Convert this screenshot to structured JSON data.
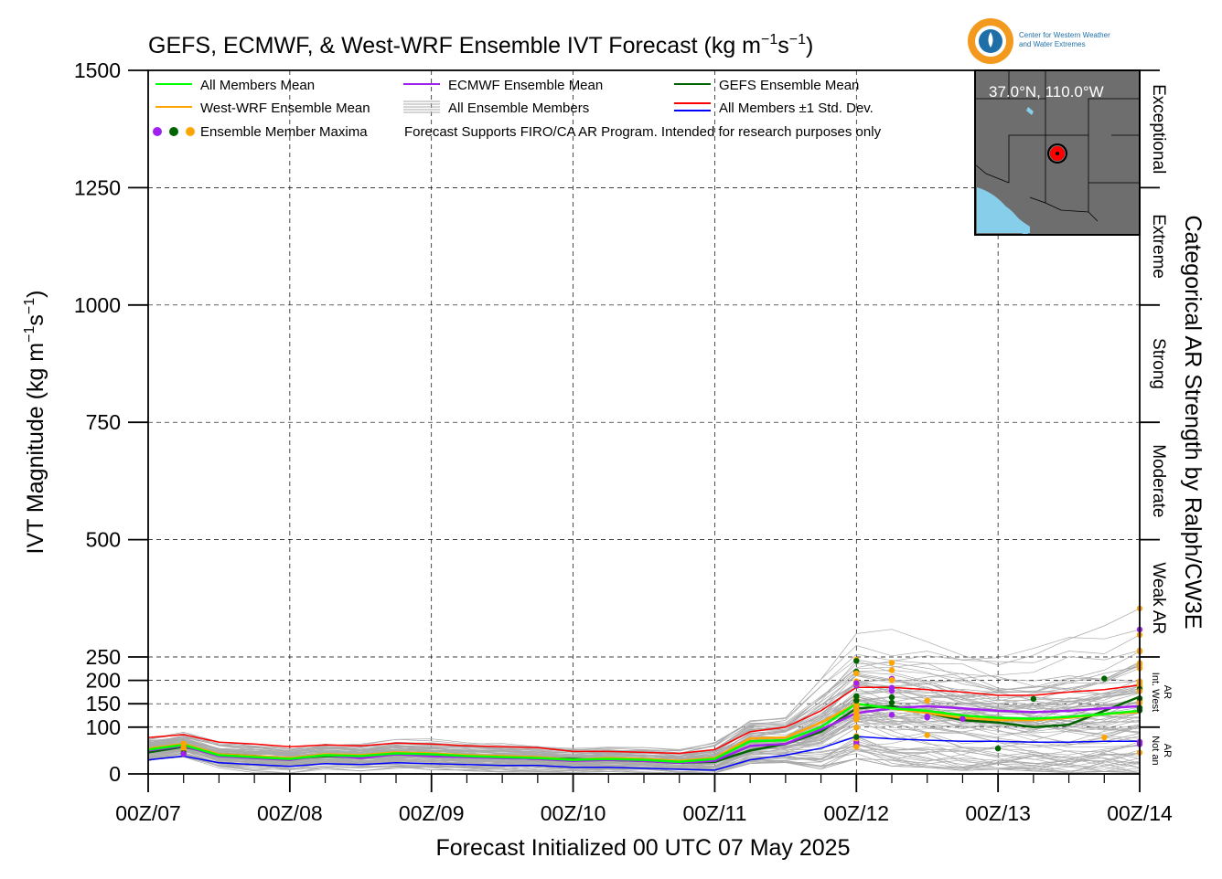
{
  "title": "GEFS, ECMWF, & West-WRF Ensemble IVT Forecast (kg m",
  "title_units_suffix": ")",
  "logo": {
    "line1": "Center for Western Weather",
    "line2": "and Water Extremes"
  },
  "legend": {
    "all_members_mean": "All Members Mean",
    "ecmwf_mean": "ECMWF Ensemble Mean",
    "gefs_mean": "GEFS Ensemble Mean",
    "westwrf_mean": "West-WRF Ensemble Mean",
    "all_members": "All Ensemble Members",
    "std_dev": "All Members ±1 Std. Dev.",
    "maxima": "Ensemble Member Maxima",
    "disclaimer": "Forecast Supports FIRO/CA AR Program. Intended for research purposes only"
  },
  "inset_map": {
    "location_label": "37.0°N, 110.0°W",
    "land_color": "#6e6e6e",
    "water_color": "#87ceeb",
    "marker_color": "#ff0000"
  },
  "colors": {
    "all_members_mean": "#00ff00",
    "ecmwf_mean": "#a020f0",
    "gefs_mean": "#006400",
    "westwrf_mean": "#ffa500",
    "members": "#aaaaaa",
    "std_upper": "#ff0000",
    "std_lower": "#0000ff",
    "grid": "#000000"
  },
  "chart_data": {
    "type": "line",
    "title": "GEFS, ECMWF, & West-WRF Ensemble IVT Forecast (kg m^-1 s^-1)",
    "xlabel": "Forecast Initialized 00 UTC 07 May 2025",
    "ylabel": "IVT Magnitude (kg m^-1 s^-1)",
    "right_label": "Categorical AR Strength by Ralph/CW3E",
    "x_unit": "hours since 00Z/07 May 2025",
    "xlim": [
      0,
      168
    ],
    "x_ticks": [
      0,
      24,
      48,
      72,
      96,
      120,
      144,
      168
    ],
    "x_tick_labels": [
      "00Z/07",
      "00Z/08",
      "00Z/09",
      "00Z/10",
      "00Z/11",
      "00Z/12",
      "00Z/13",
      "00Z/14"
    ],
    "y_ticks": [
      0,
      100,
      150,
      200,
      250,
      500,
      750,
      1000,
      1250,
      1500
    ],
    "y_tick_labels": [
      "0",
      "100",
      "150",
      "200",
      "250",
      "500",
      "750",
      "1000",
      "1250",
      "1500"
    ],
    "ylim": [
      0,
      1500
    ],
    "y_scale_note": "piecewise: 0-250 expanded, 250-1500 linear",
    "grid": true,
    "legend_position": "top-left",
    "categories_right": [
      {
        "label": "Not an AR",
        "from": 0,
        "to": 100
      },
      {
        "label": "Int. West AR",
        "from": 100,
        "to": 250
      },
      {
        "label": "Weak AR",
        "from": 250,
        "to": 500
      },
      {
        "label": "Moderate",
        "from": 500,
        "to": 750
      },
      {
        "label": "Strong",
        "from": 750,
        "to": 1000
      },
      {
        "label": "Extreme",
        "from": 1000,
        "to": 1250
      },
      {
        "label": "Exceptional",
        "from": 1250,
        "to": 1500
      }
    ],
    "x": [
      0,
      6,
      12,
      18,
      24,
      30,
      36,
      42,
      48,
      54,
      60,
      66,
      72,
      78,
      84,
      90,
      96,
      102,
      108,
      114,
      120,
      126,
      132,
      138,
      144,
      150,
      156,
      162,
      168
    ],
    "series": [
      {
        "name": "All Members Mean",
        "values": [
          52,
          62,
          40,
          36,
          32,
          40,
          38,
          44,
          42,
          38,
          36,
          34,
          30,
          32,
          30,
          26,
          32,
          70,
          72,
          100,
          150,
          140,
          135,
          125,
          120,
          118,
          122,
          128,
          135
        ]
      },
      {
        "name": "ECMWF Ensemble Mean",
        "values": [
          50,
          60,
          38,
          34,
          30,
          40,
          34,
          42,
          38,
          36,
          34,
          32,
          28,
          30,
          28,
          24,
          28,
          60,
          64,
          95,
          130,
          140,
          145,
          140,
          135,
          132,
          135,
          140,
          145
        ]
      },
      {
        "name": "GEFS Ensemble Mean",
        "values": [
          46,
          58,
          42,
          38,
          32,
          38,
          36,
          42,
          40,
          38,
          36,
          34,
          32,
          30,
          28,
          24,
          26,
          50,
          64,
          90,
          140,
          145,
          130,
          115,
          110,
          100,
          105,
          135,
          165
        ]
      },
      {
        "name": "West-WRF Ensemble Mean",
        "values": [
          54,
          64,
          42,
          38,
          34,
          42,
          40,
          46,
          44,
          40,
          38,
          36,
          30,
          34,
          32,
          28,
          34,
          76,
          78,
          110,
          150,
          140,
          130,
          120,
          115,
          115,
          120,
          128,
          132
        ]
      },
      {
        "name": "All Members +1 Std. Dev.",
        "values": [
          78,
          84,
          68,
          64,
          58,
          62,
          60,
          66,
          64,
          60,
          58,
          56,
          48,
          48,
          46,
          44,
          52,
          90,
          100,
          135,
          185,
          185,
          180,
          175,
          168,
          168,
          175,
          180,
          190
        ]
      },
      {
        "name": "All Members -1 Std. Dev.",
        "values": [
          30,
          38,
          24,
          20,
          16,
          22,
          20,
          24,
          22,
          20,
          18,
          18,
          14,
          14,
          12,
          10,
          8,
          30,
          40,
          55,
          80,
          75,
          72,
          70,
          70,
          68,
          68,
          70,
          70
        ]
      }
    ]
  }
}
